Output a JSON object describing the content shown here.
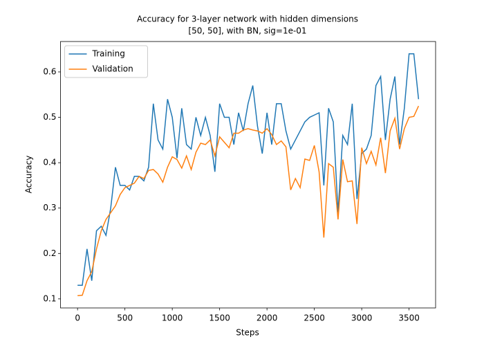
{
  "chart_data": {
    "type": "line",
    "title": [
      "Accuracy for 3-layer network with hidden dimensions",
      "[50, 50], with BN, sig=1e-01"
    ],
    "xlabel": "Steps",
    "ylabel": "Accuracy",
    "x": [
      0,
      50,
      100,
      150,
      200,
      250,
      300,
      350,
      400,
      450,
      500,
      550,
      600,
      650,
      700,
      750,
      800,
      850,
      900,
      950,
      1000,
      1050,
      1100,
      1150,
      1200,
      1250,
      1300,
      1350,
      1400,
      1450,
      1500,
      1550,
      1600,
      1650,
      1700,
      1750,
      1800,
      1850,
      1900,
      1950,
      2000,
      2050,
      2100,
      2150,
      2200,
      2250,
      2300,
      2350,
      2400,
      2450,
      2500,
      2550,
      2600,
      2650,
      2700,
      2750,
      2800,
      2850,
      2900,
      2950,
      3000,
      3050,
      3100,
      3150,
      3200,
      3250,
      3300,
      3350,
      3400,
      3450,
      3500,
      3550,
      3600
    ],
    "series": [
      {
        "name": "Training",
        "color": "#1f77b4",
        "values": [
          0.13,
          0.13,
          0.21,
          0.14,
          0.25,
          0.26,
          0.24,
          0.3,
          0.39,
          0.35,
          0.35,
          0.34,
          0.37,
          0.37,
          0.36,
          0.39,
          0.53,
          0.45,
          0.43,
          0.54,
          0.5,
          0.41,
          0.52,
          0.44,
          0.43,
          0.5,
          0.46,
          0.5,
          0.46,
          0.38,
          0.53,
          0.5,
          0.5,
          0.44,
          0.51,
          0.47,
          0.53,
          0.57,
          0.48,
          0.42,
          0.51,
          0.44,
          0.53,
          0.53,
          0.47,
          0.43,
          0.45,
          0.47,
          0.49,
          0.5,
          0.505,
          0.51,
          0.35,
          0.52,
          0.49,
          0.29,
          0.46,
          0.44,
          0.53,
          0.32,
          0.42,
          0.43,
          0.46,
          0.57,
          0.59,
          0.45,
          0.54,
          0.59,
          0.44,
          0.52,
          0.64,
          0.64,
          0.54
        ]
      },
      {
        "name": "Validation",
        "color": "#ff7f0e",
        "values": [
          0.107,
          0.108,
          0.14,
          0.16,
          0.21,
          0.25,
          0.275,
          0.29,
          0.305,
          0.33,
          0.345,
          0.35,
          0.355,
          0.37,
          0.365,
          0.383,
          0.385,
          0.375,
          0.357,
          0.39,
          0.413,
          0.407,
          0.388,
          0.415,
          0.385,
          0.423,
          0.443,
          0.44,
          0.45,
          0.415,
          0.457,
          0.445,
          0.433,
          0.465,
          0.465,
          0.472,
          0.475,
          0.472,
          0.47,
          0.465,
          0.475,
          0.462,
          0.44,
          0.448,
          0.435,
          0.34,
          0.365,
          0.345,
          0.408,
          0.405,
          0.438,
          0.38,
          0.235,
          0.398,
          0.39,
          0.275,
          0.407,
          0.358,
          0.36,
          0.265,
          0.433,
          0.398,
          0.425,
          0.395,
          0.455,
          0.377,
          0.47,
          0.498,
          0.43,
          0.475,
          0.5,
          0.502,
          0.525
        ]
      }
    ],
    "xlim": [
      -180,
      3780
    ],
    "ylim": [
      0.08,
      0.667
    ],
    "xticks": [
      0,
      500,
      1000,
      1500,
      2000,
      2500,
      3000,
      3500
    ],
    "yticks": [
      0.1,
      0.2,
      0.3,
      0.4,
      0.5,
      0.6
    ],
    "grid": false,
    "legend": "upper left"
  }
}
